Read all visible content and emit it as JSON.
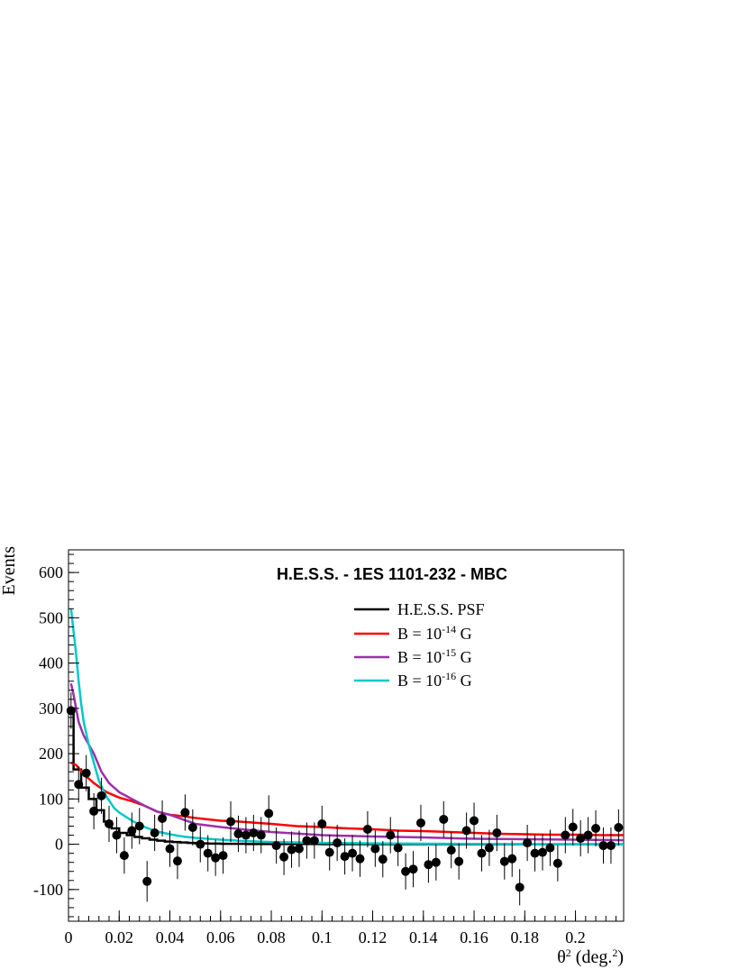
{
  "chart_data": {
    "type": "scatter",
    "title": "H.E.S.S. - 1ES 1101-232 - MBC",
    "ylabel": "Events",
    "xlabel": {
      "main": "θ",
      "sup": "2",
      "unit_prefix": " (deg.",
      "unit_sup": "2",
      "unit_suffix": ")"
    },
    "xlim": [
      0,
      0.219
    ],
    "ylim": [
      -170,
      650
    ],
    "x_ticks": [
      0,
      0.02,
      0.04,
      0.06,
      0.08,
      0.1,
      0.12,
      0.14,
      0.16,
      0.18,
      0.2
    ],
    "x_tick_labels": [
      "0",
      "0.02",
      "0.04",
      "0.06",
      "0.08",
      "0.1",
      "0.12",
      "0.14",
      "0.16",
      "0.18",
      "0.2"
    ],
    "y_ticks": [
      -100,
      0,
      100,
      200,
      300,
      400,
      500,
      600
    ],
    "y_tick_labels": [
      "-100",
      "0",
      "100",
      "200",
      "300",
      "400",
      "500",
      "600"
    ],
    "grid": false,
    "legend_position": "top-right",
    "legend": [
      {
        "label": "H.E.S.S. PSF",
        "base": "",
        "exp": "",
        "unit": "",
        "color": "#000000"
      },
      {
        "label": "B = 10",
        "base": "",
        "exp": "-14",
        "unit": " G",
        "color": "#ff0000"
      },
      {
        "label": "B = 10",
        "base": "",
        "exp": "-15",
        "unit": " G",
        "color": "#9b30a8"
      },
      {
        "label": "B = 10",
        "base": "",
        "exp": "-16",
        "unit": " G",
        "color": "#00c8c8"
      }
    ],
    "data_points": {
      "x": [
        0.001,
        0.004,
        0.007,
        0.01,
        0.013,
        0.016,
        0.019,
        0.022,
        0.025,
        0.028,
        0.031,
        0.034,
        0.037,
        0.04,
        0.043,
        0.046,
        0.049,
        0.052,
        0.055,
        0.058,
        0.061,
        0.064,
        0.067,
        0.07,
        0.073,
        0.076,
        0.079,
        0.082,
        0.085,
        0.088,
        0.091,
        0.094,
        0.097,
        0.1,
        0.103,
        0.106,
        0.109,
        0.112,
        0.115,
        0.118,
        0.121,
        0.124,
        0.127,
        0.13,
        0.133,
        0.136,
        0.139,
        0.142,
        0.145,
        0.148,
        0.151,
        0.154,
        0.157,
        0.16,
        0.163,
        0.166,
        0.169,
        0.172,
        0.175,
        0.178,
        0.181,
        0.184,
        0.187,
        0.19,
        0.193,
        0.196,
        0.199,
        0.202,
        0.205,
        0.208,
        0.211,
        0.214,
        0.217
      ],
      "y": [
        295,
        132,
        157,
        73,
        107,
        45,
        20,
        -25,
        30,
        40,
        -82,
        25,
        57,
        -10,
        -37,
        70,
        37,
        0,
        -20,
        -30,
        -25,
        50,
        23,
        20,
        25,
        20,
        68,
        -3,
        -28,
        -12,
        -10,
        8,
        8,
        45,
        -18,
        3,
        -27,
        -20,
        -32,
        33,
        -10,
        -33,
        20,
        -8,
        -60,
        -55,
        47,
        -45,
        -40,
        55,
        -13,
        -38,
        30,
        52,
        -20,
        -8,
        25,
        -38,
        -32,
        -95,
        3,
        -20,
        -18,
        -8,
        -42,
        20,
        38,
        13,
        20,
        35,
        -3,
        -3,
        37
      ],
      "err": [
        40,
        40,
        40,
        40,
        40,
        40,
        40,
        40,
        40,
        40,
        45,
        40,
        40,
        40,
        40,
        40,
        40,
        40,
        40,
        40,
        40,
        45,
        40,
        40,
        40,
        40,
        40,
        40,
        40,
        40,
        40,
        40,
        40,
        40,
        40,
        40,
        40,
        40,
        40,
        40,
        40,
        40,
        40,
        40,
        40,
        40,
        40,
        40,
        40,
        40,
        40,
        40,
        40,
        40,
        40,
        40,
        40,
        40,
        40,
        40,
        40,
        40,
        40,
        40,
        40,
        40,
        40,
        40,
        40,
        40,
        40,
        40,
        40
      ]
    },
    "series": [
      {
        "name": "H.E.S.S. PSF",
        "color": "#000000",
        "step": true,
        "x": [
          0,
          0.002,
          0.005,
          0.008,
          0.011,
          0.014,
          0.017,
          0.02,
          0.023,
          0.026,
          0.029,
          0.032,
          0.035,
          0.038,
          0.041,
          0.044,
          0.047,
          0.05,
          0.055,
          0.06,
          0.07,
          0.08,
          0.1,
          0.15,
          0.219
        ],
        "y": [
          300,
          165,
          125,
          100,
          75,
          50,
          35,
          25,
          20,
          16,
          13,
          10,
          8,
          6,
          5,
          4,
          3,
          2,
          1.5,
          1,
          0.5,
          0.3,
          0.1,
          0,
          0
        ]
      },
      {
        "name": "B = 10-14 G",
        "color": "#ff0000",
        "step": false,
        "x": [
          0.001,
          0.003,
          0.006,
          0.01,
          0.015,
          0.02,
          0.025,
          0.03,
          0.035,
          0.04,
          0.045,
          0.05,
          0.055,
          0.06,
          0.065,
          0.07,
          0.08,
          0.09,
          0.1,
          0.11,
          0.12,
          0.13,
          0.14,
          0.15,
          0.16,
          0.17,
          0.18,
          0.19,
          0.2,
          0.21,
          0.219
        ],
        "y": [
          180,
          175,
          155,
          135,
          115,
          103,
          95,
          85,
          72,
          65,
          62,
          58,
          55,
          52,
          51,
          49,
          45,
          40,
          38,
          35,
          33,
          30,
          29,
          27,
          25,
          23,
          22,
          21,
          21,
          20,
          20
        ]
      },
      {
        "name": "B = 10-15 G",
        "color": "#9b30a8",
        "step": false,
        "x": [
          0.001,
          0.002,
          0.004,
          0.006,
          0.008,
          0.01,
          0.013,
          0.016,
          0.02,
          0.025,
          0.03,
          0.035,
          0.04,
          0.045,
          0.05,
          0.06,
          0.07,
          0.08,
          0.1,
          0.12,
          0.14,
          0.16,
          0.18,
          0.2,
          0.219
        ],
        "y": [
          355,
          330,
          270,
          240,
          220,
          200,
          160,
          135,
          115,
          100,
          85,
          72,
          65,
          55,
          45,
          38,
          32,
          27,
          20,
          17,
          15,
          12,
          11,
          10,
          9
        ]
      },
      {
        "name": "B = 10-16 G",
        "color": "#00c8c8",
        "step": false,
        "x": [
          0.001,
          0.002,
          0.003,
          0.004,
          0.005,
          0.006,
          0.008,
          0.01,
          0.012,
          0.015,
          0.018,
          0.02,
          0.025,
          0.03,
          0.035,
          0.04,
          0.045,
          0.05,
          0.06,
          0.07,
          0.08,
          0.1,
          0.12,
          0.15,
          0.18,
          0.219
        ],
        "y": [
          520,
          470,
          420,
          360,
          310,
          270,
          220,
          180,
          140,
          105,
          80,
          70,
          52,
          38,
          28,
          22,
          17,
          14,
          10,
          7,
          5,
          3,
          2,
          1,
          0,
          0
        ]
      }
    ]
  }
}
